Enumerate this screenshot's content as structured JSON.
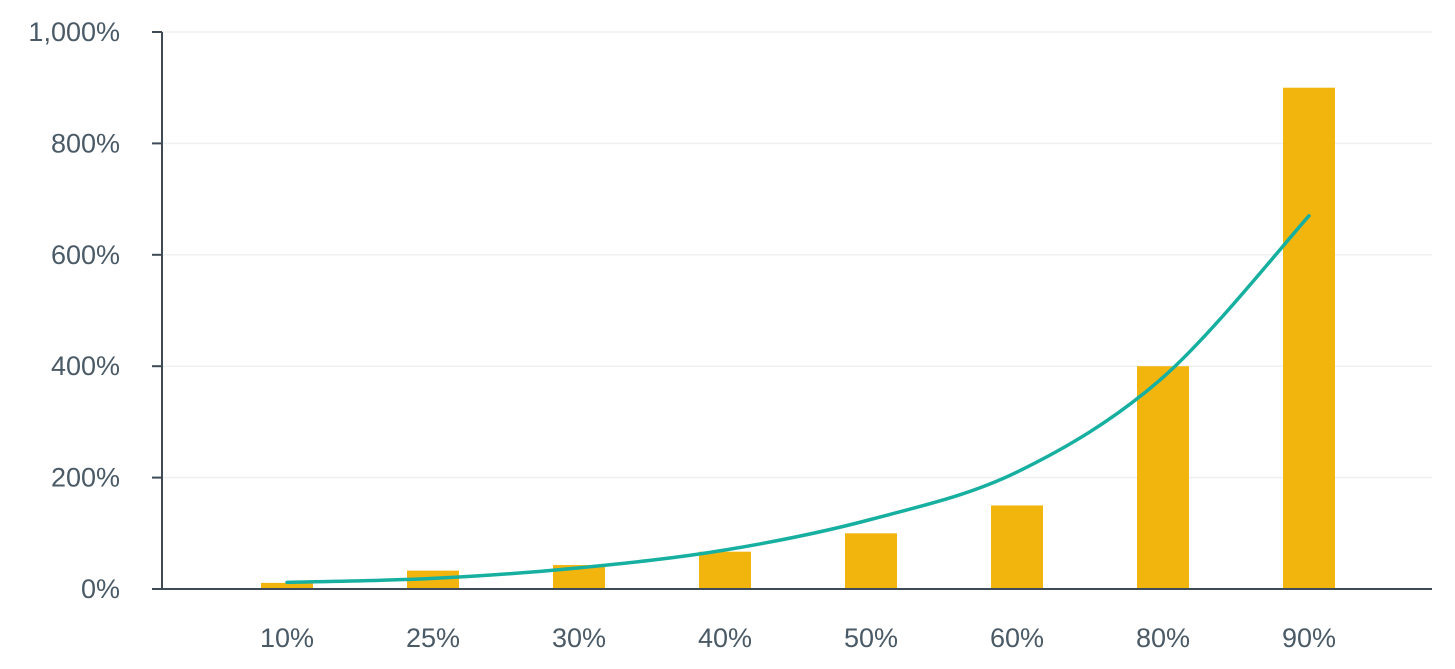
{
  "chart_data": {
    "type": "bar",
    "categories": [
      "10%",
      "25%",
      "30%",
      "40%",
      "50%",
      "60%",
      "80%",
      "90%"
    ],
    "series": [
      {
        "type": "bar",
        "values": [
          11,
          33,
          43,
          67,
          100,
          150,
          400,
          900
        ]
      },
      {
        "type": "line",
        "curve": "exponential-trend",
        "values": [
          12,
          19,
          38,
          70,
          125,
          210,
          380,
          670
        ]
      }
    ],
    "ylim": [
      0,
      1000
    ],
    "yticks": [
      0,
      200,
      400,
      600,
      800,
      1000
    ],
    "ytick_labels": [
      "0%",
      "200%",
      "400%",
      "600%",
      "800%",
      "1,000%"
    ],
    "grid": true,
    "colors": {
      "bar": "#f2b50e",
      "line": "#17b0a0"
    }
  }
}
